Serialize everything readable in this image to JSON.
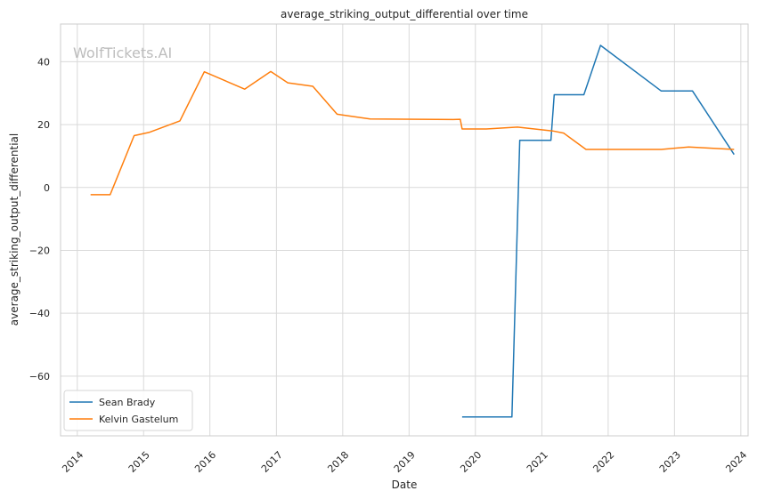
{
  "chart_data": {
    "type": "line",
    "title": "average_striking_output_differential over time",
    "xlabel": "Date",
    "ylabel": "average_striking_output_differential",
    "watermark": "WolfTickets.AI",
    "xlim": [
      "2013-10-01",
      "2024-02-10"
    ],
    "ylim": [
      -79,
      52
    ],
    "x_ticks": [
      "2014-01-01",
      "2015-01-01",
      "2016-01-01",
      "2017-01-01",
      "2018-01-01",
      "2019-01-01",
      "2020-01-01",
      "2021-01-01",
      "2022-01-01",
      "2023-01-01",
      "2024-01-01"
    ],
    "x_tick_labels": [
      "2014",
      "2015",
      "2016",
      "2017",
      "2018",
      "2019",
      "2020",
      "2021",
      "2022",
      "2023",
      "2024"
    ],
    "y_ticks": [
      -60,
      -40,
      -20,
      0,
      20,
      40
    ],
    "y_tick_labels": [
      "−60",
      "−40",
      "−20",
      "0",
      "20",
      "40"
    ],
    "grid": true,
    "legend_position": "lower-left",
    "series": [
      {
        "name": "Sean Brady",
        "color": "#1f77b4",
        "points": [
          [
            "2019-10-20",
            -73.0
          ],
          [
            "2020-07-20",
            -73.0
          ],
          [
            "2020-09-01",
            15.0
          ],
          [
            "2021-02-20",
            15.0
          ],
          [
            "2021-03-10",
            29.5
          ],
          [
            "2021-08-20",
            29.5
          ],
          [
            "2021-11-20",
            45.2
          ],
          [
            "2022-10-20",
            30.7
          ],
          [
            "2023-04-10",
            30.7
          ],
          [
            "2023-11-25",
            10.5
          ]
        ]
      },
      {
        "name": "Kelvin Gastelum",
        "color": "#ff7f0e",
        "points": [
          [
            "2014-03-15",
            -2.3
          ],
          [
            "2014-07-01",
            -2.3
          ],
          [
            "2014-11-10",
            16.5
          ],
          [
            "2015-01-30",
            17.5
          ],
          [
            "2015-07-20",
            21.2
          ],
          [
            "2015-12-01",
            36.8
          ],
          [
            "2016-07-10",
            31.3
          ],
          [
            "2016-12-01",
            36.9
          ],
          [
            "2017-03-05",
            33.3
          ],
          [
            "2017-07-20",
            32.2
          ],
          [
            "2017-12-01",
            23.3
          ],
          [
            "2018-02-01",
            22.8
          ],
          [
            "2018-06-01",
            21.8
          ],
          [
            "2019-03-01",
            21.7
          ],
          [
            "2019-09-01",
            21.6
          ],
          [
            "2019-10-10",
            21.7
          ],
          [
            "2019-10-20",
            18.6
          ],
          [
            "2020-03-01",
            18.6
          ],
          [
            "2020-08-20",
            19.2
          ],
          [
            "2021-03-01",
            18.0
          ],
          [
            "2021-05-01",
            17.3
          ],
          [
            "2021-09-01",
            12.1
          ],
          [
            "2022-10-20",
            12.1
          ],
          [
            "2023-03-20",
            12.9
          ],
          [
            "2023-11-25",
            12.1
          ]
        ]
      }
    ]
  }
}
